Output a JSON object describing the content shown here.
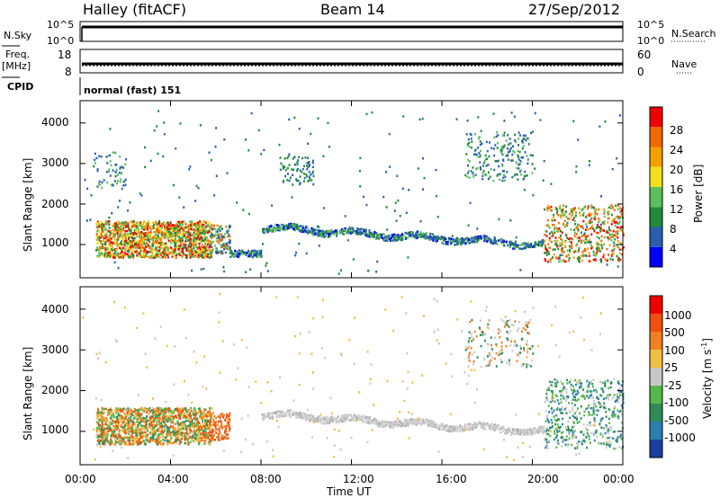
{
  "header": {
    "station": "Halley (fitACF)",
    "beam": "Beam 14",
    "date": "27/Sep/2012"
  },
  "panels": {
    "nsky": {
      "label": "N.Sky",
      "ticks_left": [
        "10^5",
        "10^0"
      ],
      "ticks_right": [
        "10^5",
        "10^0"
      ],
      "right_label": "N.Search"
    },
    "freq": {
      "label": "Freq.",
      "unit": "[MHz]",
      "ticks_left": [
        "18",
        "8"
      ],
      "ticks_right": [
        "60",
        "0"
      ],
      "right_label": "Nave"
    },
    "cpid": {
      "label": "CPID",
      "mode": "normal (fast) 151"
    }
  },
  "chart_data": [
    {
      "type": "heatmap",
      "name": "power",
      "ylabel": "Slant Range [km]",
      "yticks": [
        1000,
        2000,
        3000,
        4000
      ],
      "ylim": [
        180,
        4550
      ],
      "xlim": [
        0,
        24
      ],
      "colorbar": {
        "label": "Power [dB]",
        "ticks": [
          "28",
          "24",
          "20",
          "16",
          "12",
          "8",
          "4"
        ],
        "colors": [
          "#0000ff",
          "#2a5fb0",
          "#1f8a3a",
          "#5cbf5c",
          "#f0e020",
          "#f4a000",
          "#f06a00",
          "#f00000"
        ]
      }
    },
    {
      "type": "heatmap",
      "name": "velocity",
      "ylabel": "Slant Range [km]",
      "yticks": [
        1000,
        2000,
        3000,
        4000
      ],
      "ylim": [
        180,
        4550
      ],
      "xlim": [
        0,
        24
      ],
      "xlabel": "Time UT",
      "xticks": [
        "00:00",
        "04:00",
        "08:00",
        "12:00",
        "16:00",
        "20:00",
        "00:00"
      ],
      "colorbar": {
        "label": "Velocity [m s",
        "label_sup": "-1",
        "label_end": "]",
        "ticks": [
          "1000",
          "500",
          "100",
          "25",
          "-25",
          "-100",
          "-500",
          "-1000"
        ],
        "colors": [
          "#1a3fa0",
          "#2a7fb0",
          "#2e8b57",
          "#55b84a",
          "#c8c8c8",
          "#f0c040",
          "#f08020",
          "#f05010",
          "#f00000"
        ]
      }
    }
  ]
}
